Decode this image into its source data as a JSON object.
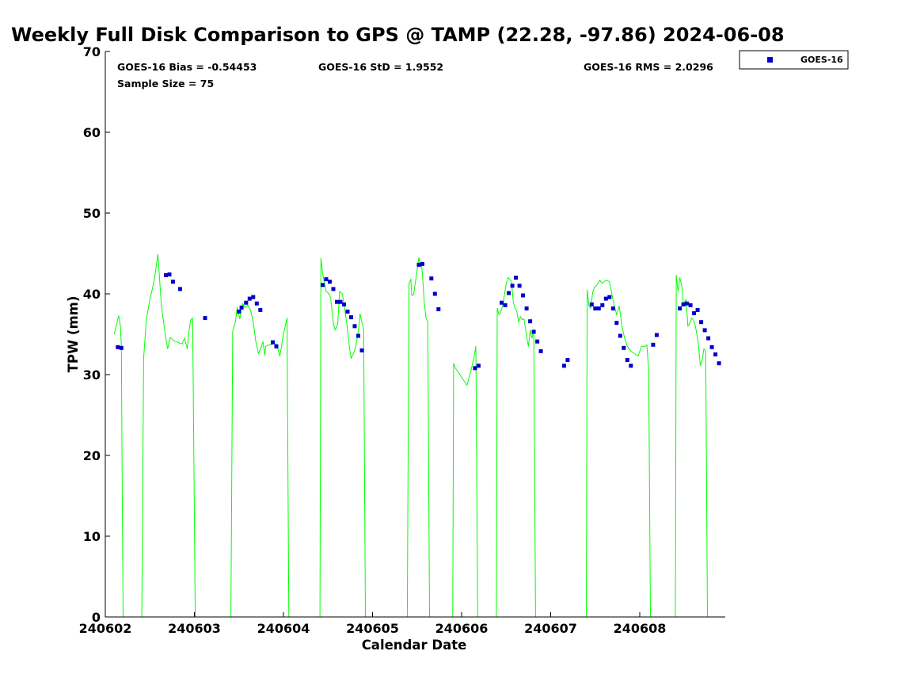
{
  "title": "Weekly Full Disk Comparison to GPS @ TAMP (22.28, -97.86) 2024-06-08",
  "stats": {
    "bias": "GOES-16 Bias = -0.54453",
    "std": "GOES-16 StD = 1.9552",
    "rms": "GOES-16 RMS = 2.0296",
    "sample": "Sample Size = 75"
  },
  "colors": {
    "gps_line": "#00ff00",
    "goes_marker": "#0000cc"
  },
  "chart_data": {
    "type": "scatter",
    "xlabel": "Calendar Date",
    "ylabel": "TPW (mm)",
    "xlim": [
      0,
      6.88
    ],
    "ylim": [
      0,
      70
    ],
    "x_ticks": [
      0,
      1,
      2,
      3,
      4,
      5,
      6
    ],
    "x_tick_labels": [
      "240602",
      "240603",
      "240604",
      "240605",
      "240606",
      "240607",
      "240608"
    ],
    "y_ticks": [
      0,
      10,
      20,
      30,
      40,
      50,
      60,
      70
    ],
    "legend": {
      "position": "top-right",
      "entries": [
        "GOES-16"
      ]
    },
    "series": [
      {
        "kind": "line",
        "color": "#00ff00",
        "x": [
          0.1,
          0.12,
          0.15,
          0.17,
          0.18,
          0.19,
          0.2,
          0.41,
          0.43,
          0.46,
          0.5,
          0.55,
          0.59,
          0.63,
          0.66,
          0.68,
          0.7,
          0.73,
          0.77,
          0.81,
          0.86,
          0.89,
          0.92,
          0.94,
          0.96,
          0.98,
          1.01,
          1.06,
          1.11,
          1.13,
          1.16,
          1.18,
          1.19,
          1.21,
          1.22,
          1.41,
          1.43,
          1.46,
          1.48,
          1.51,
          1.54,
          1.57,
          1.6,
          1.63,
          1.66,
          1.69,
          1.72,
          1.75,
          1.77,
          1.79,
          1.8,
          1.82,
          1.84,
          1.86,
          1.88,
          1.92,
          1.96,
          2.0,
          2.04,
          2.06,
          2.08,
          2.1,
          2.12,
          2.14,
          2.15,
          2.16,
          2.17,
          2.18,
          2.19,
          2.41,
          2.42,
          2.44,
          2.46,
          2.48,
          2.51,
          2.53,
          2.56,
          2.58,
          2.61,
          2.63,
          2.66,
          2.69,
          2.72,
          2.74,
          2.76,
          2.78,
          2.8,
          2.82,
          2.84,
          2.86,
          2.88,
          2.9,
          2.92,
          2.96,
          3.0,
          3.04,
          3.08,
          3.1,
          3.12,
          3.13,
          3.14,
          3.39,
          3.41,
          3.43,
          3.44,
          3.46,
          3.48,
          3.5,
          3.52,
          3.54,
          3.55,
          3.56,
          3.58,
          3.6,
          3.62,
          3.64,
          3.66,
          3.68,
          3.7,
          3.72,
          3.74,
          3.75,
          3.76,
          3.77,
          3.78,
          3.79,
          3.8,
          3.9,
          3.91,
          3.93,
          3.97,
          4.01,
          4.06,
          4.1,
          4.14,
          4.16,
          4.18,
          4.19,
          4.2,
          4.21,
          4.39,
          4.4,
          4.42,
          4.44,
          4.46,
          4.48,
          4.5,
          4.52,
          4.54,
          4.56,
          4.58,
          4.6,
          4.62,
          4.64,
          4.66,
          4.68,
          4.7,
          4.72,
          4.74,
          4.75,
          4.77,
          4.79,
          4.81,
          4.83,
          4.85,
          4.87,
          4.91,
          4.95,
          5.0,
          5.05,
          5.08,
          5.1,
          5.12,
          5.13,
          5.14,
          5.15,
          5.16,
          5.17,
          5.18,
          5.4,
          5.41,
          5.43,
          5.45,
          5.47,
          5.49,
          5.52,
          5.55,
          5.58,
          5.62,
          5.66,
          5.7,
          5.74,
          5.77,
          5.8,
          5.83,
          5.86,
          5.9,
          5.94,
          5.98,
          6.02,
          6.06,
          6.08,
          6.1,
          6.12,
          6.15,
          6.17,
          6.18,
          6.19,
          6.2,
          6.4,
          6.41,
          6.43,
          6.45,
          6.47,
          6.49,
          6.52,
          6.54,
          6.56,
          6.58,
          6.6,
          6.62,
          6.64,
          6.66,
          6.68,
          6.7,
          6.72,
          6.74,
          6.76,
          6.78,
          6.8,
          6.82,
          6.84,
          6.85,
          6.86,
          6.87
        ],
        "y": [
          35.0,
          35.9,
          37.3,
          36.0,
          33.5,
          15.0,
          0,
          0,
          32.0,
          36.8,
          39.3,
          41.7,
          44.9,
          38.5,
          36.0,
          34.4,
          33.2,
          34.6,
          34.2,
          34.0,
          33.8,
          34.5,
          33.2,
          35.5,
          36.8,
          37.0,
          0,
          0,
          0,
          0,
          0,
          0,
          0,
          0,
          0,
          0,
          35.4,
          36.5,
          38.3,
          36.9,
          38.8,
          38.3,
          38.6,
          38.0,
          36.6,
          34.1,
          32.6,
          33.4,
          34.1,
          32.4,
          33.5,
          33.6,
          33.7,
          33.7,
          33.8,
          33.8,
          32.3,
          35.0,
          37.0,
          0,
          0,
          0,
          0,
          0,
          0,
          0,
          0,
          0,
          0,
          0,
          44.4,
          42.5,
          41.3,
          40.3,
          40.0,
          39.5,
          36.3,
          35.5,
          36.3,
          40.3,
          40.0,
          38.0,
          35.5,
          33.4,
          32.0,
          32.5,
          33.0,
          34.0,
          35.3,
          37.5,
          36.5,
          35.5,
          0,
          0,
          0,
          0,
          0,
          0,
          0,
          0,
          0,
          0,
          41.3,
          41.8,
          39.8,
          39.9,
          41.3,
          43.0,
          44.5,
          43.3,
          43.5,
          42.5,
          39.0,
          37.0,
          36.5,
          0,
          0,
          0,
          0,
          0,
          0,
          0,
          0,
          0,
          0,
          0,
          0,
          0,
          31.4,
          30.8,
          30.2,
          29.5,
          28.7,
          30.3,
          32.2,
          33.5,
          0,
          0,
          0,
          0,
          0,
          38.2,
          37.4,
          37.8,
          38.5,
          39.8,
          41.2,
          42.0,
          41.8,
          41.5,
          39.0,
          38.2,
          37.8,
          36.5,
          37.2,
          36.8,
          36.9,
          35.5,
          34.0,
          33.5,
          35.5,
          34.5,
          35.5,
          0,
          0,
          0,
          0,
          0,
          0,
          0,
          0,
          0,
          0,
          0,
          0,
          0,
          0,
          0,
          0,
          0,
          40.5,
          38.5,
          38.2,
          40.1,
          40.8,
          41.1,
          41.7,
          41.3,
          41.7,
          41.5,
          39.2,
          37.4,
          38.5,
          36.0,
          34.5,
          33.5,
          32.9,
          32.6,
          32.3,
          33.5,
          33.5,
          33.7,
          30.5,
          0,
          0,
          0,
          0,
          0,
          0,
          0,
          42.3,
          40.3,
          42.0,
          41.1,
          38.8,
          39.3,
          36.0,
          36.3,
          37.0,
          36.8,
          36.2,
          35.1,
          33.5,
          31.1,
          31.8,
          33.2,
          32.9,
          0,
          0,
          0,
          0,
          0,
          0,
          0,
          0
        ]
      },
      {
        "kind": "scatter",
        "name": "GOES-16",
        "color": "#0000cc",
        "x": [
          0.14,
          0.18,
          0.68,
          0.72,
          0.76,
          0.84,
          1.12,
          1.5,
          1.53,
          1.58,
          1.62,
          1.66,
          1.7,
          1.74,
          1.88,
          1.92,
          2.44,
          2.48,
          2.52,
          2.56,
          2.6,
          2.64,
          2.68,
          2.72,
          2.76,
          2.8,
          2.84,
          2.88,
          3.52,
          3.56,
          3.66,
          3.7,
          3.74,
          4.15,
          4.19,
          4.45,
          4.49,
          4.53,
          4.57,
          4.61,
          4.65,
          4.69,
          4.73,
          4.77,
          4.81,
          4.85,
          4.89,
          5.15,
          5.19,
          5.46,
          5.5,
          5.54,
          5.58,
          5.62,
          5.66,
          5.7,
          5.74,
          5.78,
          5.82,
          5.86,
          5.9,
          6.15,
          6.19,
          6.45,
          6.49,
          6.53,
          6.57,
          6.61,
          6.65,
          6.69,
          6.73,
          6.77,
          6.81,
          6.85,
          6.89
        ],
        "y": [
          33.4,
          33.3,
          42.3,
          42.4,
          41.5,
          40.6,
          37.0,
          37.8,
          38.3,
          38.9,
          39.4,
          39.6,
          38.8,
          38.0,
          34.0,
          33.5,
          41.1,
          41.8,
          41.5,
          40.6,
          39.0,
          39.0,
          38.7,
          37.8,
          37.1,
          36.0,
          34.8,
          33.0,
          43.6,
          43.7,
          41.9,
          40.0,
          38.1,
          30.8,
          31.1,
          38.9,
          38.6,
          40.1,
          41.0,
          42.0,
          41.0,
          39.8,
          38.2,
          36.6,
          35.3,
          34.1,
          32.9,
          31.1,
          31.8,
          38.7,
          38.2,
          38.2,
          38.6,
          39.4,
          39.6,
          38.2,
          36.4,
          34.8,
          33.3,
          31.8,
          31.1,
          33.7,
          34.9,
          38.2,
          38.7,
          38.8,
          38.6,
          37.6,
          38.0,
          36.5,
          35.5,
          34.5,
          33.4,
          32.5,
          31.4
        ]
      }
    ]
  }
}
